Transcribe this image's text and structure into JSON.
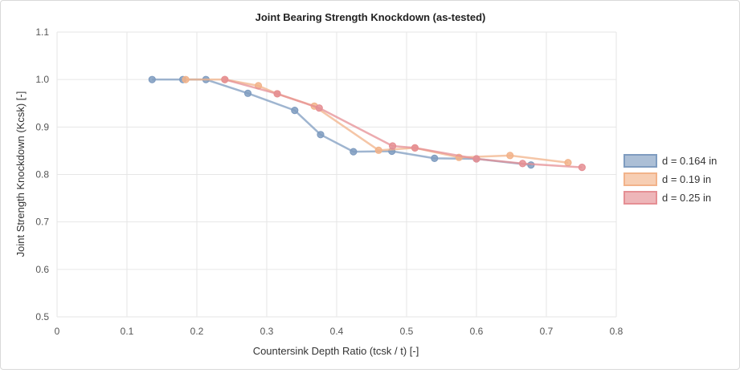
{
  "chart_data": {
    "type": "line",
    "title": "Joint Bearing Strength Knockdown (as-tested)",
    "xlabel": "Countersink Depth Ratio (tcsk / t) [-]",
    "ylabel": "Joint Strength Knockdown (Kcsk) [-]",
    "xlim": [
      0,
      0.8
    ],
    "ylim": [
      0.5,
      1.1
    ],
    "xticks": [
      0,
      0.1,
      0.2,
      0.3,
      0.4,
      0.5,
      0.6,
      0.7,
      0.8
    ],
    "yticks": [
      0.5,
      0.6,
      0.7,
      0.8,
      0.9,
      1.0,
      1.1
    ],
    "xtick_labels": [
      "0",
      "0.1",
      "0.2",
      "0.3",
      "0.4",
      "0.5",
      "0.6",
      "0.7",
      "0.8"
    ],
    "ytick_labels": [
      "0.5",
      "0.6",
      "0.7",
      "0.8",
      "0.9",
      "1.0",
      "1.1"
    ],
    "grid": true,
    "legend_position": "right",
    "series": [
      {
        "name": "d = 0.164 in",
        "color": "#7f9cc0",
        "points": [
          [
            0.136,
            1.0
          ],
          [
            0.18,
            1.0
          ],
          [
            0.213,
            1.0
          ],
          [
            0.273,
            0.971
          ],
          [
            0.34,
            0.935
          ],
          [
            0.377,
            0.884
          ],
          [
            0.424,
            0.848
          ],
          [
            0.479,
            0.849
          ],
          [
            0.54,
            0.834
          ],
          [
            0.6,
            0.833
          ],
          [
            0.678,
            0.82
          ]
        ]
      },
      {
        "name": "d = 0.19 in",
        "color": "#f2b38a",
        "points": [
          [
            0.184,
            1.0
          ],
          [
            0.24,
            1.0
          ],
          [
            0.288,
            0.987
          ],
          [
            0.315,
            0.97
          ],
          [
            0.368,
            0.944
          ],
          [
            0.46,
            0.851
          ],
          [
            0.512,
            0.856
          ],
          [
            0.575,
            0.836
          ],
          [
            0.648,
            0.84
          ],
          [
            0.731,
            0.825
          ]
        ]
      },
      {
        "name": "d = 0.25 in",
        "color": "#e58f94",
        "points": [
          [
            0.24,
            1.0
          ],
          [
            0.315,
            0.97
          ],
          [
            0.375,
            0.94
          ],
          [
            0.48,
            0.86
          ],
          [
            0.512,
            0.856
          ],
          [
            0.6,
            0.833
          ],
          [
            0.666,
            0.823
          ],
          [
            0.751,
            0.815
          ]
        ]
      }
    ]
  }
}
